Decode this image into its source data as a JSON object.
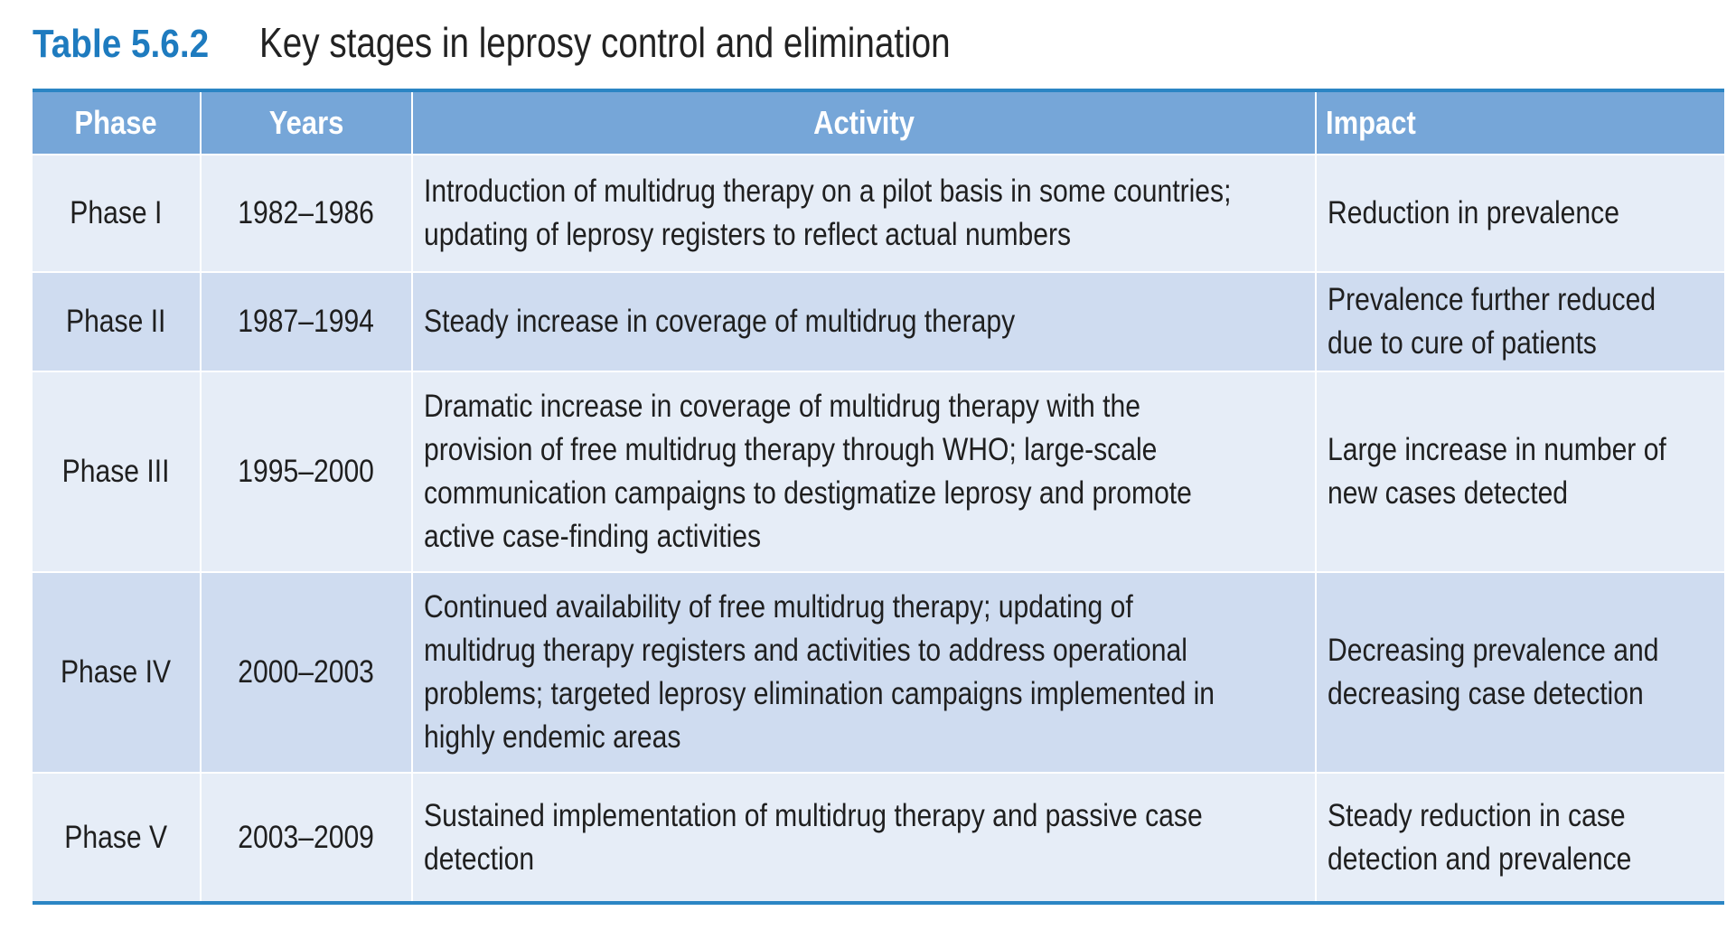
{
  "title": {
    "number": "Table 5.6.2",
    "caption": "Key stages in leprosy control and elimination"
  },
  "colors": {
    "accent": "#1e7bbf",
    "header_bg": "#76a6d8",
    "row_light": "#e6edf7",
    "row_dark": "#cfdcf0",
    "rule": "#2b85c4"
  },
  "table": {
    "headers": [
      "Phase",
      "Years",
      "Activity",
      "Impact"
    ],
    "rows": [
      {
        "phase": "Phase I",
        "years": "1982–1986",
        "activity": [
          "Introduction of multidrug therapy on a pilot basis in some countries;",
          "updating of leprosy registers to reflect actual numbers"
        ],
        "impact": [
          "Reduction in prevalence"
        ]
      },
      {
        "phase": "Phase II",
        "years": "1987–1994",
        "activity": [
          "Steady increase in coverage of multidrug therapy"
        ],
        "impact": [
          "Prevalence further reduced",
          "due to cure of patients"
        ]
      },
      {
        "phase": "Phase III",
        "years": "1995–2000",
        "activity": [
          "Dramatic increase in coverage of multidrug therapy with the",
          "provision of free multidrug therapy through WHO; large-scale",
          "communication campaigns to destigmatize leprosy and promote",
          "active case-finding activities"
        ],
        "impact": [
          "Large increase in number of",
          "new cases detected"
        ]
      },
      {
        "phase": "Phase IV",
        "years": "2000–2003",
        "activity": [
          "Continued availability of free multidrug therapy; updating of",
          "multidrug therapy registers and activities to address operational",
          "problems; targeted leprosy elimination campaigns implemented in",
          "highly endemic areas"
        ],
        "impact": [
          "Decreasing prevalence and",
          "decreasing case detection"
        ]
      },
      {
        "phase": "Phase V",
        "years": "2003–2009",
        "activity": [
          "Sustained implementation of multidrug therapy and passive case",
          "detection"
        ],
        "impact": [
          "Steady reduction in case",
          "detection and prevalence"
        ]
      }
    ]
  }
}
